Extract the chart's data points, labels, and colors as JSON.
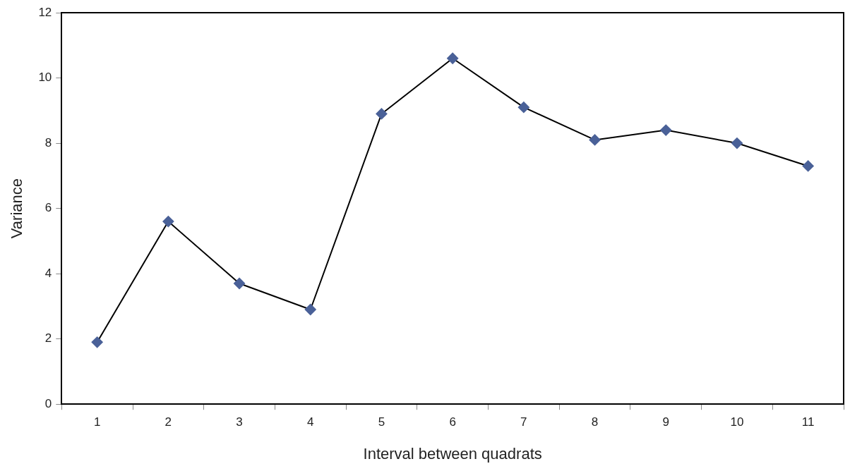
{
  "chart_data": {
    "type": "line",
    "xlabel": "Interval between quadrats",
    "ylabel": "Variance",
    "categories": [
      "1",
      "2",
      "3",
      "4",
      "5",
      "6",
      "7",
      "8",
      "9",
      "10",
      "11"
    ],
    "series": [
      {
        "color": "#4a6198",
        "values": [
          1.9,
          5.6,
          3.7,
          2.9,
          8.9,
          10.6,
          9.1,
          8.1,
          8.4,
          8.0,
          7.3
        ]
      }
    ],
    "ylim": [
      0,
      12
    ],
    "yticks": [
      0,
      2,
      4,
      6,
      8,
      10,
      12
    ],
    "grid": false,
    "legend": false,
    "marker": "diamond",
    "line_style": "solid"
  }
}
